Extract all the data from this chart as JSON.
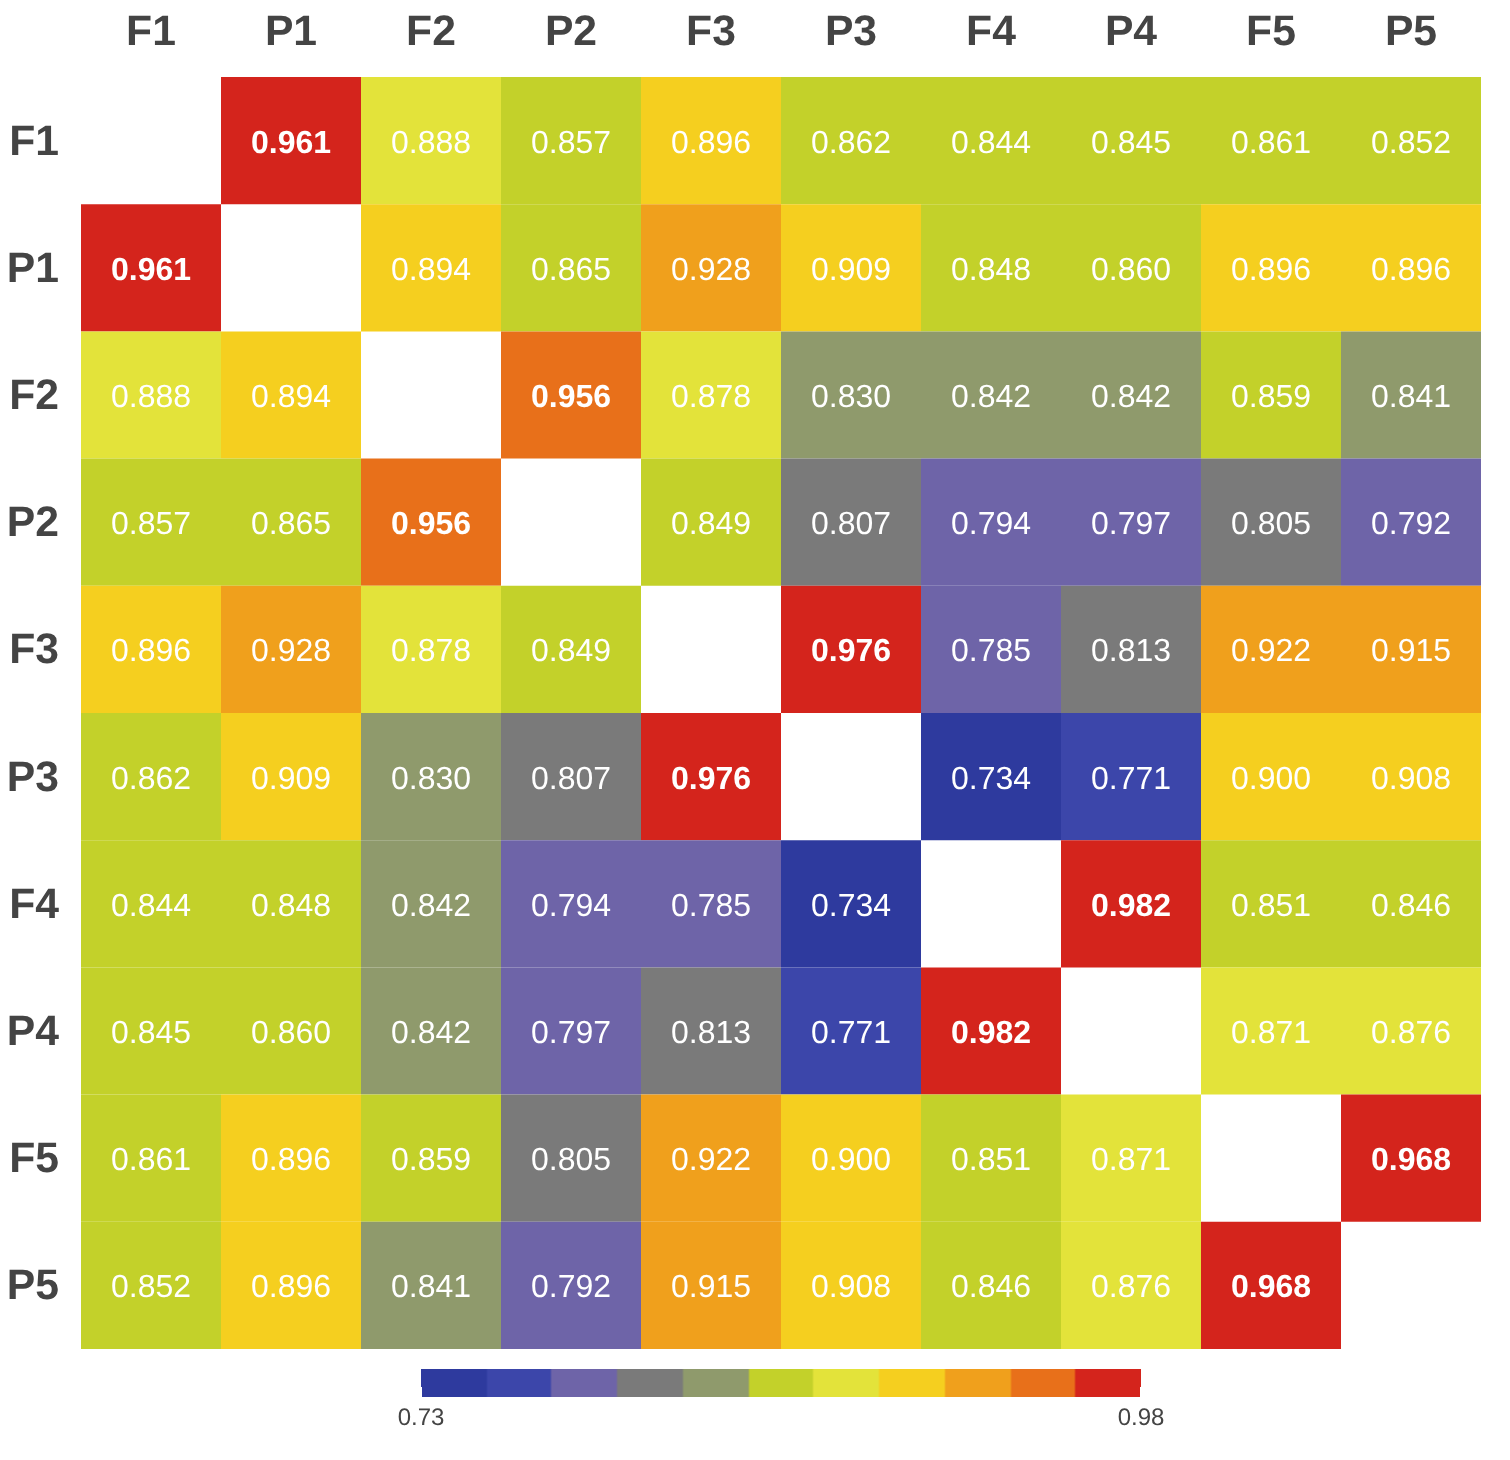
{
  "chart_data": {
    "type": "heatmap",
    "categories": [
      "F1",
      "P1",
      "F2",
      "P2",
      "F3",
      "P3",
      "F4",
      "P4",
      "F5",
      "P5"
    ],
    "y_categories": [
      "F1",
      "P1",
      "F2",
      "P2",
      "F3",
      "P3",
      "F4",
      "P4",
      "F5",
      "P5"
    ],
    "cells": [
      [
        null,
        0.961,
        0.888,
        0.857,
        0.896,
        0.862,
        0.844,
        0.845,
        0.861,
        0.852
      ],
      [
        0.961,
        null,
        0.894,
        0.865,
        0.928,
        0.909,
        0.848,
        0.86,
        0.896,
        0.896
      ],
      [
        0.888,
        0.894,
        null,
        0.956,
        0.878,
        0.83,
        0.842,
        0.842,
        0.859,
        0.841
      ],
      [
        0.857,
        0.865,
        0.956,
        null,
        0.849,
        0.807,
        0.794,
        0.797,
        0.805,
        0.792
      ],
      [
        0.896,
        0.928,
        0.878,
        0.849,
        null,
        0.976,
        0.785,
        0.813,
        0.922,
        0.915
      ],
      [
        0.862,
        0.909,
        0.83,
        0.807,
        0.976,
        null,
        0.734,
        0.771,
        0.9,
        0.908
      ],
      [
        0.844,
        0.848,
        0.842,
        0.794,
        0.785,
        0.734,
        null,
        0.982,
        0.851,
        0.846
      ],
      [
        0.845,
        0.86,
        0.842,
        0.797,
        0.813,
        0.771,
        0.982,
        null,
        0.871,
        0.876
      ],
      [
        0.861,
        0.896,
        0.859,
        0.805,
        0.922,
        0.9,
        0.851,
        0.871,
        null,
        0.968
      ],
      [
        0.852,
        0.896,
        0.841,
        0.792,
        0.915,
        0.908,
        0.846,
        0.876,
        0.968,
        null
      ]
    ],
    "cell_labels": [
      [
        null,
        "0.961",
        "0.888",
        "0.857",
        "0.896",
        "0.862",
        "0.844",
        "0.845",
        "0.861",
        "0.852"
      ],
      [
        "0.961",
        null,
        "0.894",
        "0.865",
        "0.928",
        "0.909",
        "0.848",
        "0.860",
        "0.896",
        "0.896"
      ],
      [
        "0.888",
        "0.894",
        null,
        "0.956",
        "0.878",
        "0.830",
        "0.842",
        "0.842",
        "0.859",
        "0.841"
      ],
      [
        "0.857",
        "0.865",
        "0.956",
        null,
        "0.849",
        "0.807",
        "0.794",
        "0.797",
        "0.805",
        "0.792"
      ],
      [
        "0.896",
        "0.928",
        "0.878",
        "0.849",
        null,
        "0.976",
        "0.785",
        "0.813",
        "0.922",
        "0.915"
      ],
      [
        "0.862",
        "0.909",
        "0.830",
        "0.807",
        "0.976",
        null,
        "0.734",
        "0.771",
        "0.900",
        "0.908"
      ],
      [
        "0.844",
        "0.848",
        "0.842",
        "0.794",
        "0.785",
        "0.734",
        null,
        "0.982",
        "0.851",
        "0.846"
      ],
      [
        "0.845",
        "0.860",
        "0.842",
        "0.797",
        "0.813",
        "0.771",
        "0.982",
        null,
        "0.871",
        "0.876"
      ],
      [
        "0.861",
        "0.896",
        "0.859",
        "0.805",
        "0.922",
        "0.900",
        "0.851",
        "0.871",
        null,
        "0.968"
      ],
      [
        "0.852",
        "0.896",
        "0.841",
        "0.792",
        "0.915",
        "0.908",
        "0.846",
        "0.876",
        "0.968",
        null
      ]
    ],
    "data_labels": true,
    "clim": [
      0.73,
      0.98
    ],
    "cticks": [
      0.73,
      0.98
    ]
  }
}
